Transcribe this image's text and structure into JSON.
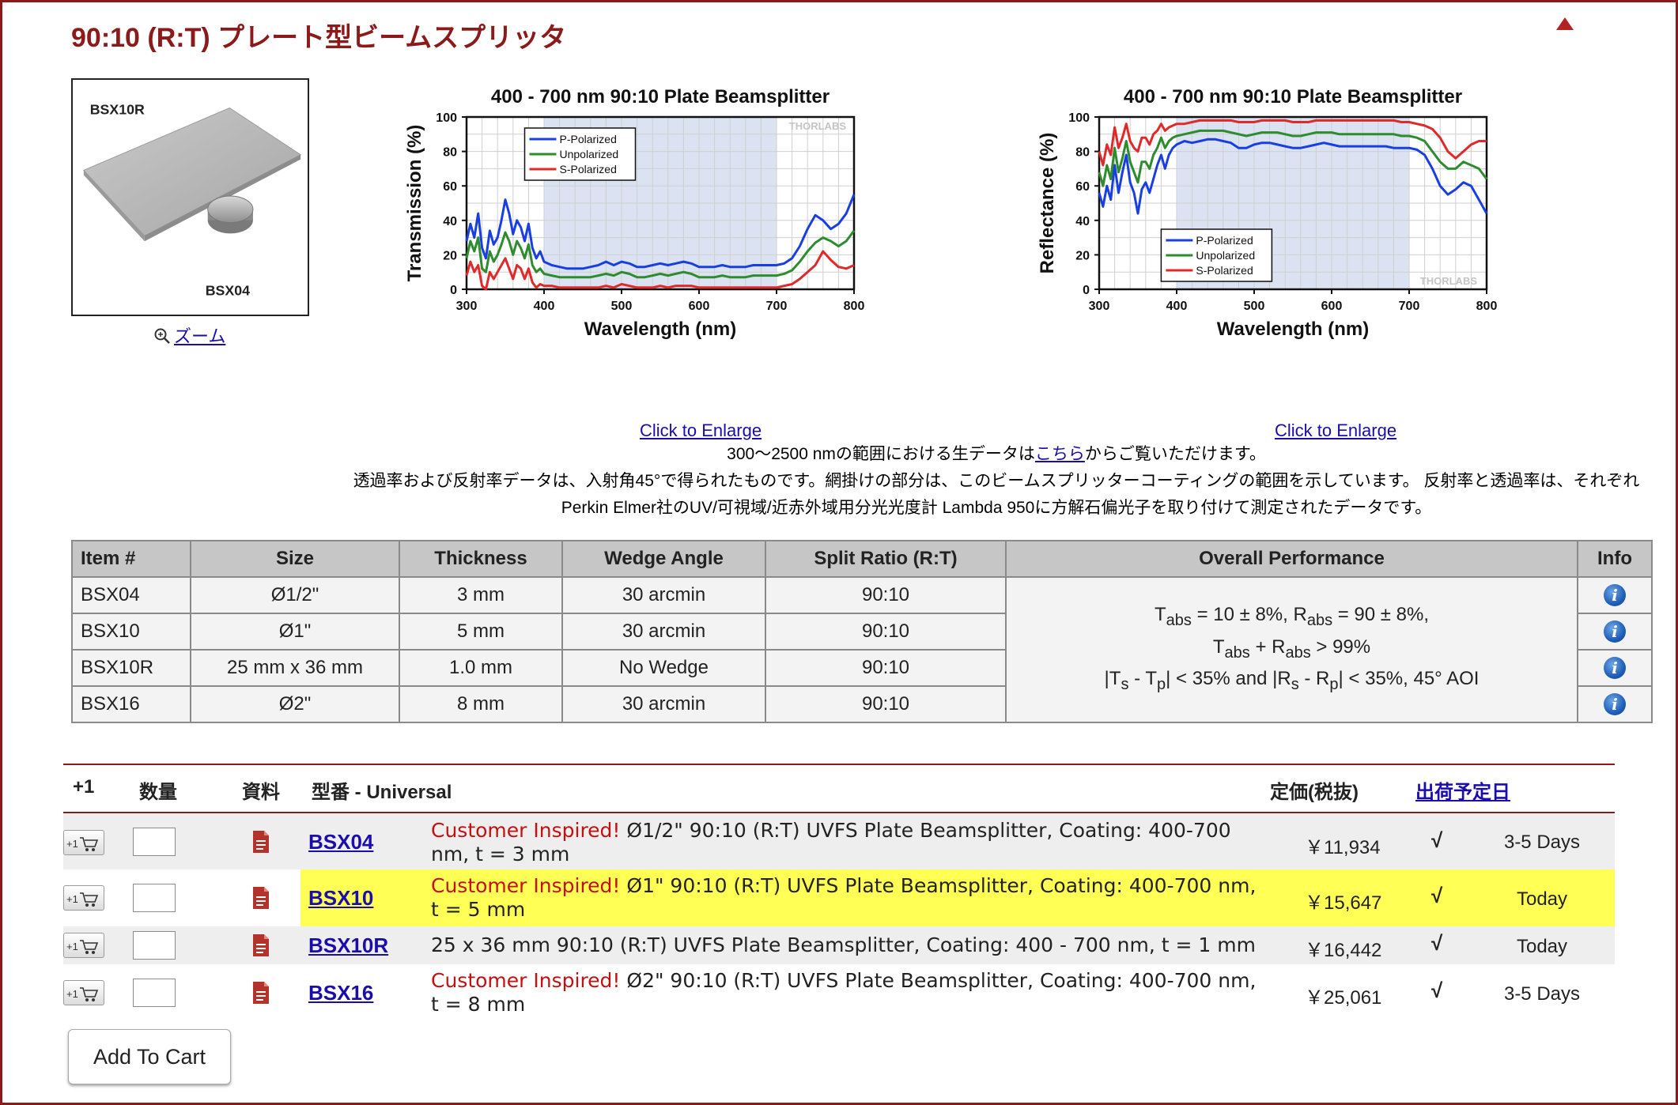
{
  "page": {
    "title": "90:10 (R:T) プレート型ビームスプリッタ",
    "zoom_label": "ズーム",
    "image_labels": {
      "top": "BSX10R",
      "bottom": "BSX04"
    },
    "enlarge_label": "Click to Enlarge",
    "notes": {
      "line1_a": "300〜2500 nmの範囲における生データは",
      "line1_link": "こちら",
      "line1_b": "からご覧いただけます。",
      "line2": "透過率および反射率データは、入射角45°で得られたものです。網掛けの部分は、このビームスプリッターコーティングの範囲を示しています。 反射率と透過率は、それぞれPerkin Elmer社のUV/可視域/近赤外域用分光光度計 Lambda 950に方解石偏光子を取り付けて測定されたデータです。"
    }
  },
  "colors": {
    "brand": "#8b1a1a",
    "p_polarized": "#1a3fe0",
    "unpolarized": "#2e8b2e",
    "s_polarized": "#e02a2a",
    "shade": "#dbe3f3",
    "highlight_row": "#ffff55"
  },
  "chart_data": [
    {
      "type": "line",
      "title": "400 - 700 nm 90:10 Plate Beamsplitter",
      "xlabel": "Wavelength (nm)",
      "ylabel": "Transmission (%)",
      "xlim": [
        300,
        800
      ],
      "ylim": [
        0,
        100
      ],
      "xticks": [
        300,
        400,
        500,
        600,
        700,
        800
      ],
      "yticks": [
        0,
        20,
        40,
        60,
        80,
        100
      ],
      "shaded_range": [
        400,
        700
      ],
      "grid": true,
      "legend": "top-center",
      "watermark": "THORLABS",
      "series": [
        {
          "name": "P-Polarized",
          "color": "#1a3fe0",
          "x": [
            300,
            305,
            310,
            315,
            320,
            325,
            330,
            335,
            340,
            345,
            350,
            355,
            360,
            365,
            370,
            375,
            380,
            385,
            390,
            395,
            400,
            410,
            420,
            430,
            440,
            450,
            460,
            470,
            480,
            490,
            500,
            510,
            520,
            530,
            540,
            550,
            560,
            570,
            580,
            590,
            600,
            610,
            620,
            630,
            640,
            650,
            660,
            670,
            680,
            690,
            700,
            710,
            720,
            730,
            740,
            750,
            760,
            770,
            780,
            790,
            800
          ],
          "y": [
            28,
            38,
            30,
            44,
            24,
            18,
            34,
            26,
            30,
            40,
            52,
            44,
            32,
            40,
            36,
            28,
            38,
            24,
            18,
            22,
            16,
            14,
            13,
            12,
            12,
            12,
            13,
            14,
            16,
            14,
            16,
            15,
            13,
            13,
            14,
            15,
            14,
            15,
            16,
            15,
            13,
            13,
            13,
            14,
            13,
            13,
            13,
            14,
            14,
            14,
            14,
            15,
            18,
            25,
            35,
            43,
            40,
            35,
            38,
            44,
            55
          ]
        },
        {
          "name": "Unpolarized",
          "color": "#2e8b2e",
          "x": [
            300,
            305,
            310,
            315,
            320,
            325,
            330,
            335,
            340,
            345,
            350,
            355,
            360,
            365,
            370,
            375,
            380,
            385,
            390,
            395,
            400,
            410,
            420,
            430,
            440,
            450,
            460,
            470,
            480,
            490,
            500,
            510,
            520,
            530,
            540,
            550,
            560,
            570,
            580,
            590,
            600,
            610,
            620,
            630,
            640,
            650,
            660,
            670,
            680,
            690,
            700,
            710,
            720,
            730,
            740,
            750,
            760,
            770,
            780,
            790,
            800
          ],
          "y": [
            18,
            28,
            22,
            30,
            12,
            10,
            22,
            16,
            20,
            26,
            33,
            28,
            20,
            28,
            24,
            18,
            26,
            14,
            10,
            12,
            9,
            8,
            7,
            7,
            7,
            7,
            7,
            8,
            9,
            8,
            10,
            9,
            7,
            7,
            8,
            9,
            8,
            9,
            10,
            9,
            7,
            7,
            7,
            8,
            7,
            7,
            7,
            8,
            8,
            8,
            8,
            9,
            11,
            16,
            22,
            27,
            30,
            28,
            25,
            28,
            34
          ]
        },
        {
          "name": "S-Polarized",
          "color": "#e02a2a",
          "x": [
            300,
            305,
            310,
            315,
            320,
            325,
            330,
            335,
            340,
            345,
            350,
            355,
            360,
            365,
            370,
            375,
            380,
            385,
            390,
            395,
            400,
            410,
            420,
            430,
            440,
            450,
            460,
            470,
            480,
            490,
            500,
            510,
            520,
            530,
            540,
            550,
            560,
            570,
            580,
            590,
            600,
            610,
            620,
            630,
            640,
            650,
            660,
            670,
            680,
            690,
            700,
            710,
            720,
            730,
            740,
            750,
            760,
            770,
            780,
            790,
            800
          ],
          "y": [
            8,
            16,
            10,
            14,
            2,
            0,
            10,
            6,
            10,
            14,
            18,
            12,
            6,
            14,
            12,
            6,
            12,
            4,
            1,
            3,
            2,
            2,
            1,
            1,
            1,
            1,
            1,
            1,
            2,
            1,
            3,
            2,
            1,
            1,
            1,
            2,
            1,
            2,
            2,
            2,
            1,
            1,
            1,
            1,
            1,
            1,
            1,
            1,
            1,
            1,
            1,
            2,
            3,
            6,
            10,
            14,
            22,
            17,
            13,
            12,
            14
          ]
        }
      ]
    },
    {
      "type": "line",
      "title": "400 - 700 nm 90:10 Plate Beamsplitter",
      "xlabel": "Wavelength (nm)",
      "ylabel": "Reflectance (%)",
      "xlim": [
        300,
        800
      ],
      "ylim": [
        0,
        100
      ],
      "xticks": [
        300,
        400,
        500,
        600,
        700,
        800
      ],
      "yticks": [
        0,
        20,
        40,
        60,
        80,
        100
      ],
      "shaded_range": [
        400,
        700
      ],
      "grid": true,
      "legend": "bottom-center",
      "watermark": "THORLABS",
      "series": [
        {
          "name": "P-Polarized",
          "color": "#1a3fe0",
          "x": [
            300,
            305,
            310,
            315,
            320,
            325,
            330,
            335,
            340,
            345,
            350,
            355,
            360,
            365,
            370,
            375,
            380,
            385,
            390,
            395,
            400,
            410,
            420,
            430,
            440,
            450,
            460,
            470,
            480,
            490,
            500,
            510,
            520,
            530,
            540,
            550,
            560,
            570,
            580,
            590,
            600,
            610,
            620,
            630,
            640,
            650,
            660,
            670,
            680,
            690,
            700,
            710,
            720,
            730,
            740,
            750,
            760,
            770,
            780,
            790,
            800
          ],
          "y": [
            56,
            48,
            60,
            52,
            72,
            56,
            68,
            78,
            62,
            56,
            44,
            58,
            62,
            56,
            64,
            72,
            78,
            70,
            78,
            82,
            84,
            86,
            85,
            86,
            87,
            87,
            86,
            85,
            82,
            82,
            84,
            85,
            85,
            84,
            83,
            82,
            82,
            83,
            84,
            85,
            84,
            83,
            83,
            83,
            83,
            83,
            83,
            83,
            82,
            82,
            82,
            81,
            78,
            70,
            60,
            55,
            58,
            62,
            60,
            52,
            44
          ]
        },
        {
          "name": "Unpolarized",
          "color": "#2e8b2e",
          "x": [
            300,
            305,
            310,
            315,
            320,
            325,
            330,
            335,
            340,
            345,
            350,
            355,
            360,
            365,
            370,
            375,
            380,
            385,
            390,
            395,
            400,
            410,
            420,
            430,
            440,
            450,
            460,
            470,
            480,
            490,
            500,
            510,
            520,
            530,
            540,
            550,
            560,
            570,
            580,
            590,
            600,
            610,
            620,
            630,
            640,
            650,
            660,
            670,
            680,
            690,
            700,
            710,
            720,
            730,
            740,
            750,
            760,
            770,
            780,
            790,
            800
          ],
          "y": [
            68,
            60,
            72,
            64,
            82,
            68,
            76,
            86,
            74,
            68,
            62,
            74,
            74,
            70,
            78,
            82,
            88,
            82,
            86,
            88,
            89,
            90,
            91,
            92,
            92,
            92,
            92,
            91,
            90,
            89,
            90,
            91,
            91,
            91,
            90,
            89,
            89,
            90,
            91,
            91,
            91,
            90,
            90,
            90,
            90,
            90,
            90,
            90,
            90,
            89,
            89,
            88,
            86,
            80,
            74,
            70,
            70,
            74,
            72,
            70,
            64
          ]
        },
        {
          "name": "S-Polarized",
          "color": "#e02a2a",
          "x": [
            300,
            305,
            310,
            315,
            320,
            325,
            330,
            335,
            340,
            345,
            350,
            355,
            360,
            365,
            370,
            375,
            380,
            385,
            390,
            395,
            400,
            410,
            420,
            430,
            440,
            450,
            460,
            470,
            480,
            490,
            500,
            510,
            520,
            530,
            540,
            550,
            560,
            570,
            580,
            590,
            600,
            610,
            620,
            630,
            640,
            650,
            660,
            670,
            680,
            690,
            700,
            710,
            720,
            730,
            740,
            750,
            760,
            770,
            780,
            790,
            800
          ],
          "y": [
            80,
            72,
            84,
            78,
            94,
            82,
            88,
            96,
            86,
            82,
            80,
            88,
            88,
            84,
            90,
            92,
            96,
            92,
            94,
            95,
            96,
            96,
            97,
            98,
            98,
            98,
            98,
            98,
            97,
            97,
            97,
            98,
            98,
            98,
            98,
            97,
            97,
            97,
            98,
            98,
            98,
            98,
            98,
            98,
            98,
            98,
            98,
            98,
            98,
            97,
            97,
            96,
            95,
            93,
            88,
            80,
            76,
            80,
            84,
            86,
            86
          ]
        }
      ]
    }
  ],
  "spec_table": {
    "headers": [
      "Item #",
      "Size",
      "Thickness",
      "Wedge Angle",
      "Split Ratio (R:T)",
      "Overall Performance",
      "Info"
    ],
    "rows": [
      [
        "BSX04",
        "Ø1/2\"",
        "3 mm",
        "30 arcmin",
        "90:10"
      ],
      [
        "BSX10",
        "Ø1\"",
        "5 mm",
        "30 arcmin",
        "90:10"
      ],
      [
        "BSX10R",
        "25 mm x 36 mm",
        "1.0 mm",
        "No Wedge",
        "90:10"
      ],
      [
        "BSX16",
        "Ø2\"",
        "8 mm",
        "30 arcmin",
        "90:10"
      ]
    ],
    "performance": {
      "line1_t": "T",
      "line1_t_sub": "abs",
      "line1_mid": " = 10 ± 8%, R",
      "line1_r_sub": "abs",
      "line1_end": " = 90 ± 8%,",
      "line2_t": "T",
      "line2_t_sub": "abs",
      "line2_mid": " + R",
      "line2_r_sub": "abs",
      "line2_end": " > 99%",
      "line3_a": "|T",
      "line3_s1": "s",
      "line3_b": " - T",
      "line3_s2": "p",
      "line3_c": "| < 35% and |R",
      "line3_s3": "s",
      "line3_d": " - R",
      "line3_s4": "p",
      "line3_e": "| < 35%, 45° AOI"
    },
    "info_glyph": "i"
  },
  "order": {
    "headers": {
      "plus1": "+1",
      "qty": "数量",
      "docs": "資料",
      "part": "型番 - Universal",
      "price": "定価(税抜)",
      "ship": "出荷予定日"
    },
    "cart_glyph": "+1",
    "rows": [
      {
        "part": "BSX04",
        "ci": "Customer Inspired!",
        "desc": " Ø1/2\" 90:10 (R:T) UVFS Plate Beamsplitter, Coating: 400-700 nm, t = 3 mm",
        "price": "￥11,934",
        "check": "√",
        "ship": "3-5 Days"
      },
      {
        "part": "BSX10",
        "ci": "Customer Inspired!",
        "desc": " Ø1\" 90:10 (R:T) UVFS Plate Beamsplitter, Coating: 400-700 nm, t = 5 mm",
        "price": "￥15,647",
        "check": "√",
        "ship": "Today"
      },
      {
        "part": "BSX10R",
        "ci": "",
        "desc": "25 x 36 mm 90:10 (R:T) UVFS Plate Beamsplitter, Coating: 400 - 700 nm, t = 1 mm",
        "price": "￥16,442",
        "check": "√",
        "ship": "Today"
      },
      {
        "part": "BSX16",
        "ci": "Customer Inspired!",
        "desc": " Ø2\" 90:10 (R:T) UVFS Plate Beamsplitter, Coating: 400-700 nm, t = 8 mm",
        "price": "￥25,061",
        "check": "√",
        "ship": "3-5 Days"
      }
    ],
    "add_to_cart": "Add To Cart"
  }
}
